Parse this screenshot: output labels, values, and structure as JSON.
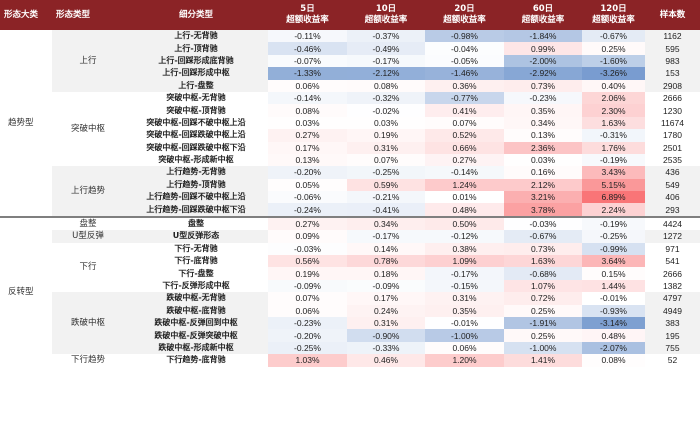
{
  "header": {
    "col_category": "形态大类",
    "col_type": "形态类型",
    "col_subtype": "细分类型",
    "col_5d": [
      "5日",
      "超额收益率"
    ],
    "col_10d": [
      "10日",
      "超额收益率"
    ],
    "col_20d": [
      "20日",
      "超额收益率"
    ],
    "col_60d": [
      "60日",
      "超额收益率"
    ],
    "col_120d": [
      "120日",
      "超额收益率"
    ],
    "col_samples": "样本数"
  },
  "groups": [
    {
      "category": "趋势型",
      "types": [
        {
          "type": "上行",
          "rows": [
            {
              "sub": "上行-无背驰",
              "v": [
                "-0.11%",
                "-0.37%",
                "-0.98%",
                "-1.84%",
                "-0.67%"
              ],
              "n": "1162"
            },
            {
              "sub": "上行-顶背驰",
              "v": [
                "-0.46%",
                "-0.49%",
                "-0.04%",
                "0.99%",
                "0.25%"
              ],
              "n": "595"
            },
            {
              "sub": "上行-回踩形成底背驰",
              "v": [
                "-0.07%",
                "-0.17%",
                "-0.05%",
                "-2.00%",
                "-1.60%"
              ],
              "n": "983"
            },
            {
              "sub": "上行-回踩形成中枢",
              "v": [
                "-1.33%",
                "-2.12%",
                "-1.46%",
                "-2.92%",
                "-3.26%"
              ],
              "n": "153"
            },
            {
              "sub": "上行-盘整",
              "v": [
                "0.06%",
                "0.08%",
                "0.36%",
                "0.73%",
                "0.40%"
              ],
              "n": "2908"
            }
          ]
        },
        {
          "type": "突破中枢",
          "rows": [
            {
              "sub": "突破中枢-无背驰",
              "v": [
                "-0.14%",
                "-0.32%",
                "-0.77%",
                "-0.23%",
                "2.06%"
              ],
              "n": "2666"
            },
            {
              "sub": "突破中枢-顶背驰",
              "v": [
                "0.08%",
                "-0.02%",
                "0.41%",
                "0.35%",
                "2.30%"
              ],
              "n": "1230"
            },
            {
              "sub": "突破中枢-回踩不破中枢上沿",
              "v": [
                "0.03%",
                "0.03%",
                "0.07%",
                "0.34%",
                "1.63%"
              ],
              "n": "11674"
            },
            {
              "sub": "突破中枢-回踩跌破中枢上沿",
              "v": [
                "0.27%",
                "0.19%",
                "0.52%",
                "0.13%",
                "-0.31%"
              ],
              "n": "1780"
            },
            {
              "sub": "突破中枢-回踩跌破中枢下沿",
              "v": [
                "0.17%",
                "0.31%",
                "0.66%",
                "2.36%",
                "1.76%"
              ],
              "n": "2501"
            },
            {
              "sub": "突破中枢-形成新中枢",
              "v": [
                "0.13%",
                "0.07%",
                "0.27%",
                "0.03%",
                "-0.19%"
              ],
              "n": "2535"
            }
          ]
        },
        {
          "type": "上行趋势",
          "rows": [
            {
              "sub": "上行趋势-无背驰",
              "v": [
                "-0.20%",
                "-0.25%",
                "-0.14%",
                "0.16%",
                "3.43%"
              ],
              "n": "436"
            },
            {
              "sub": "上行趋势-顶背驰",
              "v": [
                "0.05%",
                "0.59%",
                "1.24%",
                "2.12%",
                "5.15%"
              ],
              "n": "549"
            },
            {
              "sub": "上行趋势-回踩不破中枢上沿",
              "v": [
                "-0.06%",
                "-0.21%",
                "0.01%",
                "3.21%",
                "6.89%"
              ],
              "n": "406"
            },
            {
              "sub": "上行趋势-回踩跌破中枢下沿",
              "v": [
                "-0.24%",
                "-0.41%",
                "0.48%",
                "3.78%",
                "2.24%"
              ],
              "n": "293"
            }
          ]
        }
      ]
    },
    {
      "category": "反转型",
      "types": [
        {
          "type": "盘整",
          "rows": [
            {
              "sub": "盘整",
              "v": [
                "0.27%",
                "0.34%",
                "0.50%",
                "-0.03%",
                "-0.19%"
              ],
              "n": "4424"
            }
          ]
        },
        {
          "type": "U型反弹",
          "rows": [
            {
              "sub": "U型反弹形态",
              "v": [
                "0.09%",
                "-0.17%",
                "-0.12%",
                "-0.67%",
                "-0.25%"
              ],
              "n": "1272"
            }
          ]
        },
        {
          "type": "下行",
          "rows": [
            {
              "sub": "下行-无背驰",
              "v": [
                "-0.03%",
                "0.14%",
                "0.38%",
                "0.73%",
                "-0.99%"
              ],
              "n": "971"
            },
            {
              "sub": "下行-底背驰",
              "v": [
                "0.56%",
                "0.78%",
                "1.09%",
                "1.63%",
                "3.64%"
              ],
              "n": "541"
            },
            {
              "sub": "下行-盘整",
              "v": [
                "0.19%",
                "0.18%",
                "-0.17%",
                "-0.68%",
                "0.15%"
              ],
              "n": "2666"
            },
            {
              "sub": "下行-反弹形成中枢",
              "v": [
                "-0.09%",
                "-0.09%",
                "-0.15%",
                "1.07%",
                "1.44%"
              ],
              "n": "1382"
            }
          ]
        },
        {
          "type": "跌破中枢",
          "rows": [
            {
              "sub": "跌破中枢-无背驰",
              "v": [
                "0.07%",
                "0.17%",
                "0.31%",
                "0.72%",
                "-0.01%"
              ],
              "n": "4797"
            },
            {
              "sub": "跌破中枢-底背驰",
              "v": [
                "0.06%",
                "0.24%",
                "0.35%",
                "0.25%",
                "-0.93%"
              ],
              "n": "4949"
            },
            {
              "sub": "跌破中枢-反弹回到中枢",
              "v": [
                "-0.23%",
                "0.31%",
                "-0.01%",
                "-1.91%",
                "-3.14%"
              ],
              "n": "383"
            },
            {
              "sub": "跌破中枢-反弹突破中枢",
              "v": [
                "-0.20%",
                "-0.90%",
                "-1.00%",
                "0.25%",
                "0.48%"
              ],
              "n": "195"
            },
            {
              "sub": "跌破中枢-形成新中枢",
              "v": [
                "-0.25%",
                "-0.33%",
                "0.06%",
                "-1.00%",
                "-2.07%"
              ],
              "n": "755"
            }
          ]
        },
        {
          "type": "下行趋势",
          "rows": [
            {
              "sub": "下行趋势-底背驰",
              "v": [
                "1.03%",
                "0.46%",
                "1.20%",
                "1.41%",
                "0.08%"
              ],
              "n": "52"
            }
          ]
        }
      ]
    }
  ],
  "colors": {
    "header_bg": "#8b2326",
    "negative_max": "#5b86c5",
    "positive_max": "#f8696b",
    "neutral": "#ffffff",
    "group_gray": "#f2f2f2"
  }
}
